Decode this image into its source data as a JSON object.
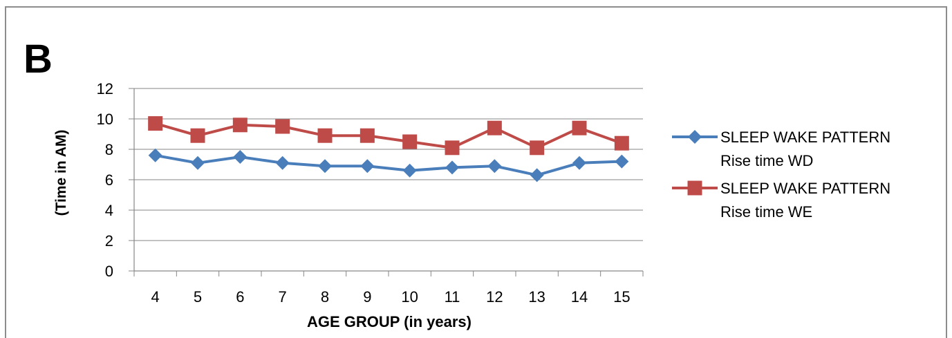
{
  "panel_label": "B",
  "chart_data": {
    "type": "line",
    "title": "",
    "xlabel": "AGE GROUP (in years)",
    "ylabel": "(Time in AM)",
    "categories": [
      "4",
      "5",
      "6",
      "7",
      "8",
      "9",
      "10",
      "11",
      "12",
      "13",
      "14",
      "15"
    ],
    "ylim": [
      0,
      12
    ],
    "yticks": [
      0,
      2,
      4,
      6,
      8,
      10,
      12
    ],
    "grid": true,
    "legend_position": "right",
    "series": [
      {
        "name": "SLEEP WAKE PATTERN Rise time WD",
        "legend_lines": [
          "SLEEP WAKE PATTERN",
          "Rise time WD"
        ],
        "color": "#4a7ebb",
        "marker": "diamond",
        "values": [
          7.6,
          7.1,
          7.5,
          7.1,
          6.9,
          6.9,
          6.6,
          6.8,
          6.9,
          6.3,
          7.1,
          7.2
        ]
      },
      {
        "name": "SLEEP WAKE PATTERN Rise time WE",
        "legend_lines": [
          "SLEEP WAKE PATTERN",
          "Rise time WE"
        ],
        "color": "#be4b48",
        "marker": "square",
        "values": [
          9.7,
          8.9,
          9.6,
          9.5,
          8.9,
          8.9,
          8.5,
          8.1,
          9.4,
          8.1,
          9.4,
          8.4
        ]
      }
    ]
  }
}
